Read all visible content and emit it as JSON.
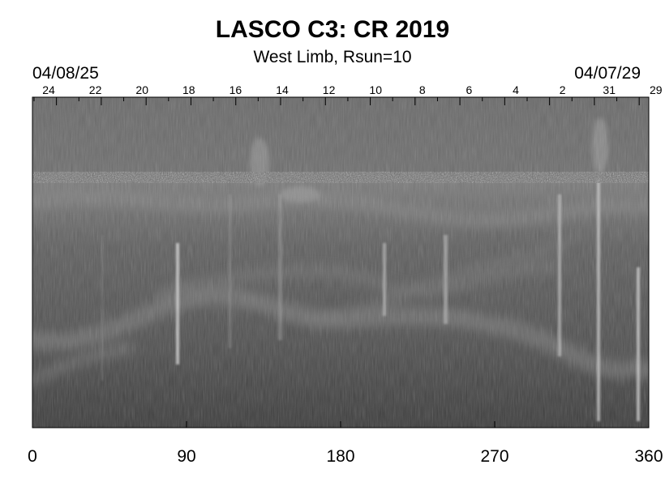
{
  "title": "LASCO C3: CR 2019",
  "subtitle": "West Limb, Rsun=10",
  "date_start": "04/08/25",
  "date_end": "04/07/29",
  "day_labels": [
    "24",
    "22",
    "20",
    "18",
    "16",
    "14",
    "12",
    "10",
    "8",
    "6",
    "4",
    "2",
    "31",
    "29"
  ],
  "x_axis": {
    "ticks": [
      "0",
      "90",
      "180",
      "270",
      "360"
    ],
    "range": [
      0,
      360
    ]
  }
}
